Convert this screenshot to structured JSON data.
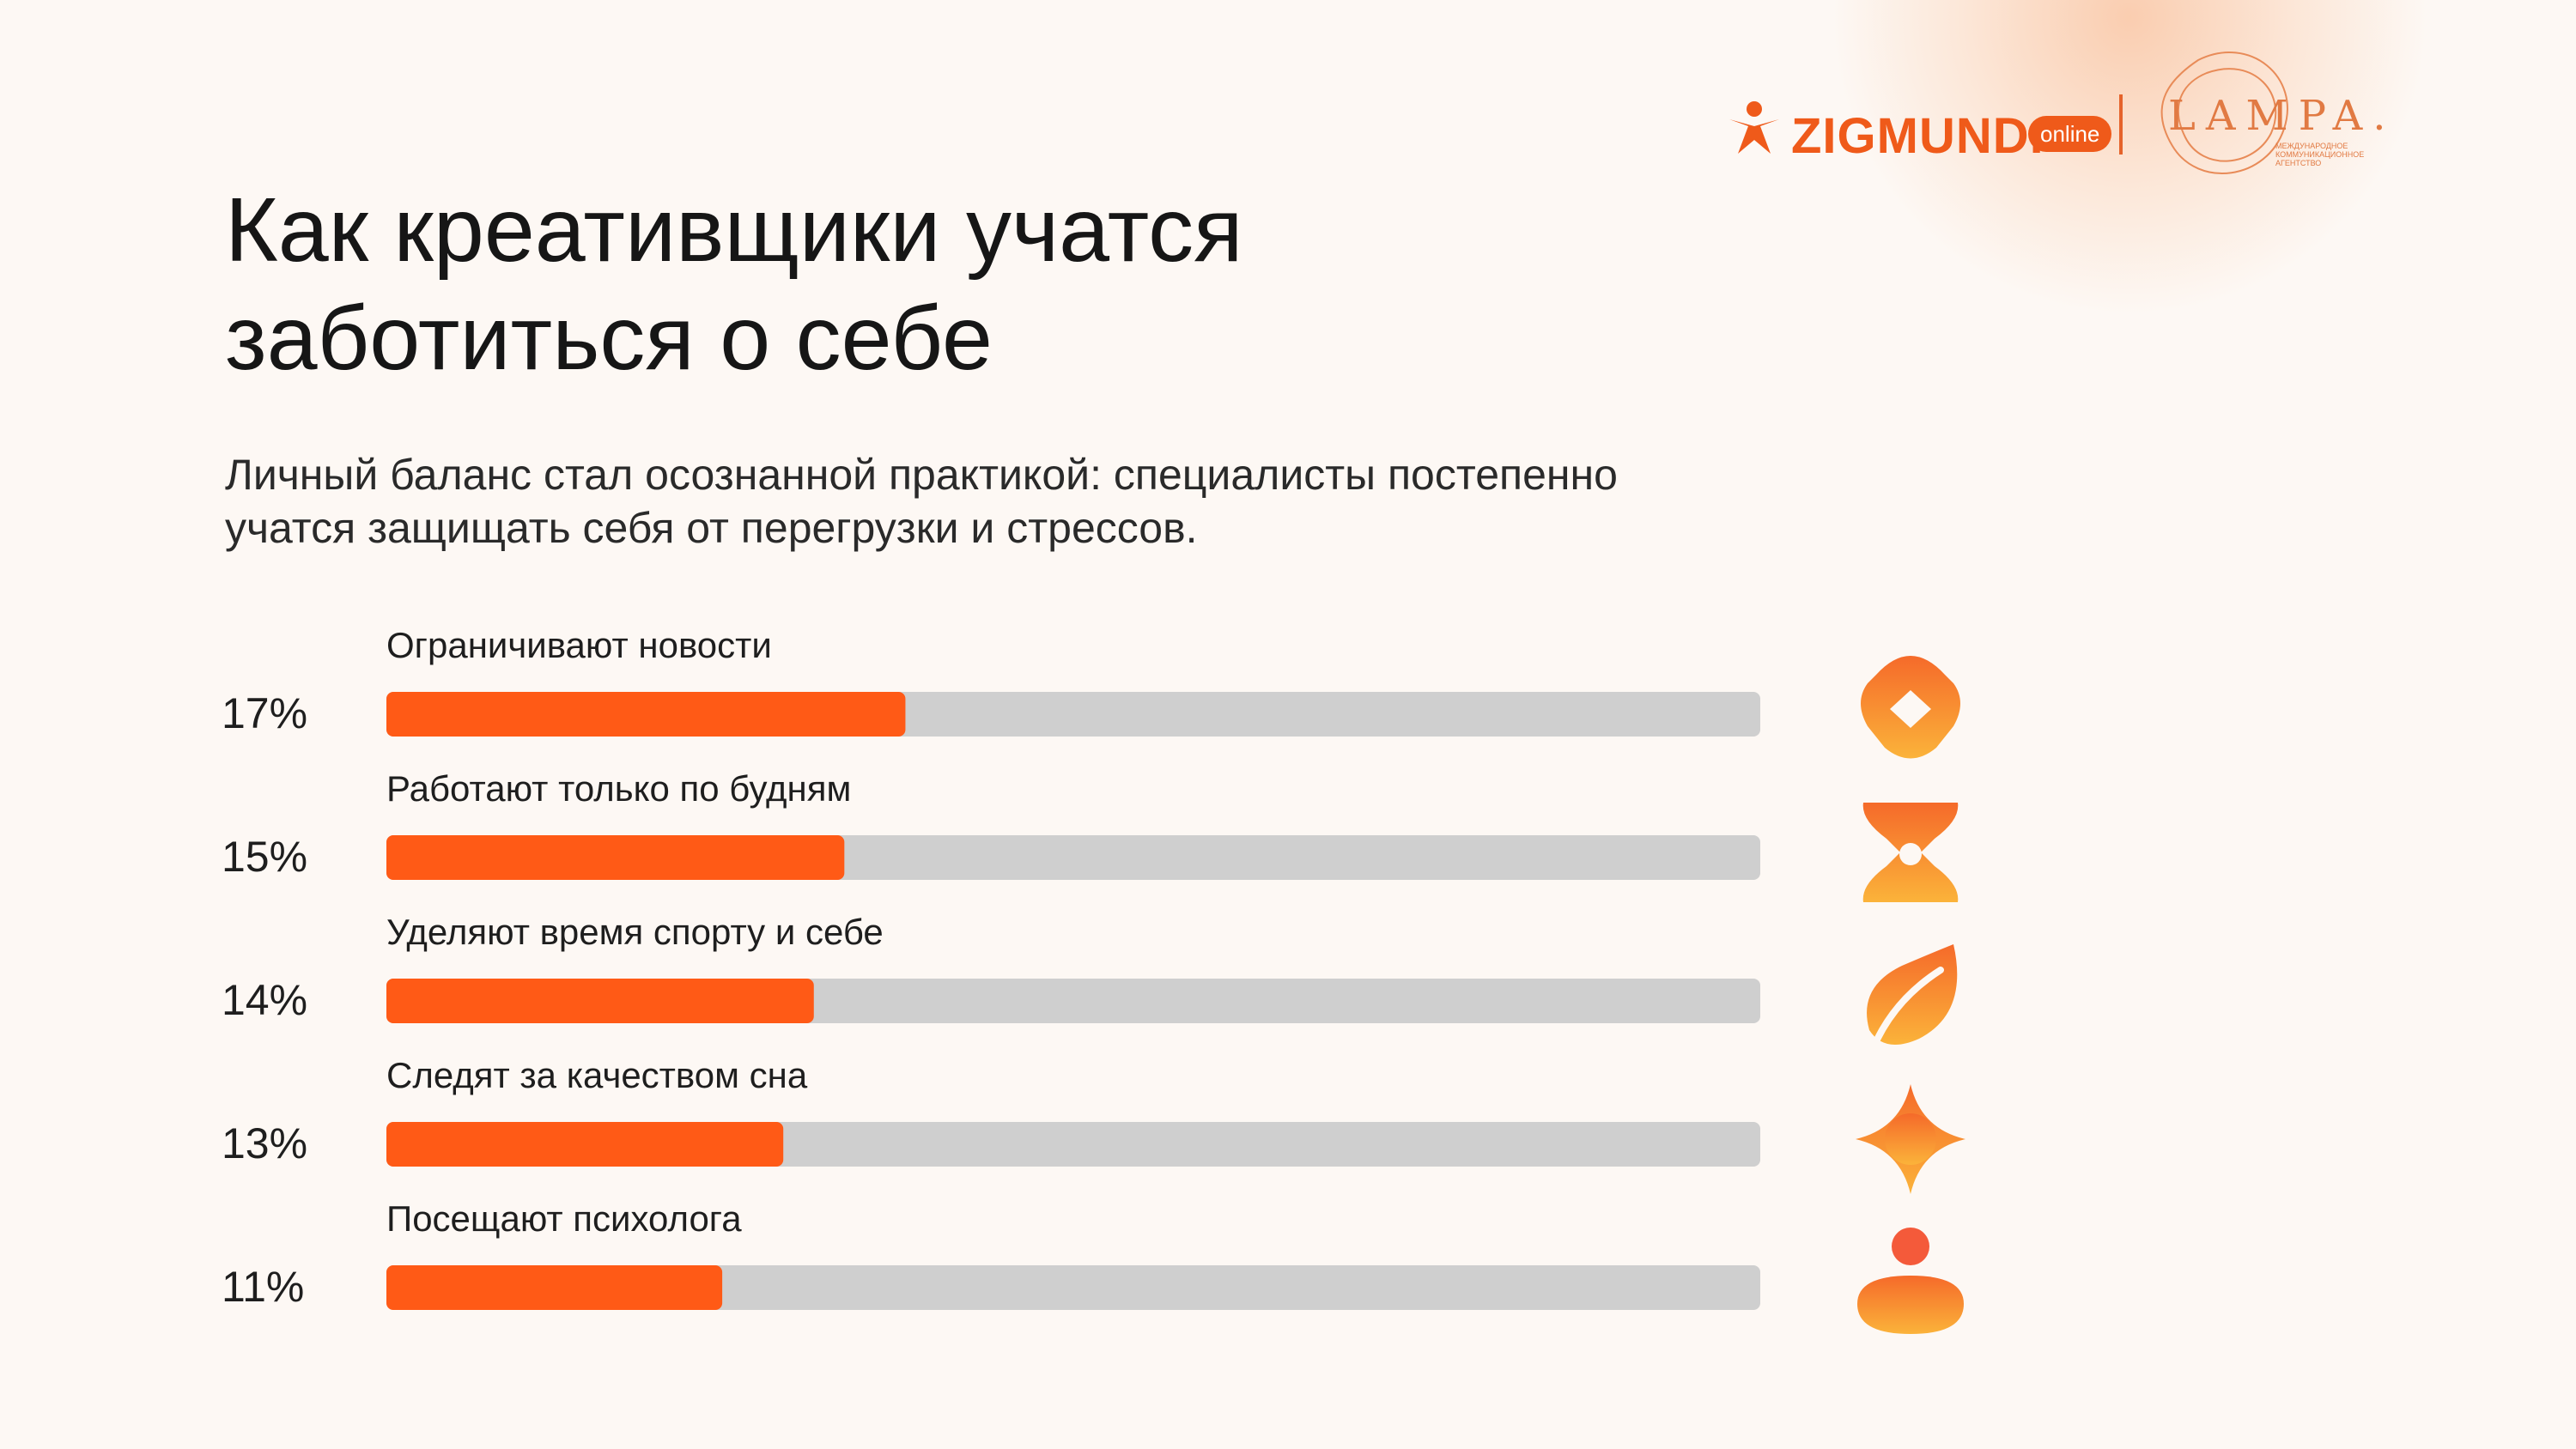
{
  "header": {
    "title_lines": [
      "Как креативщики учатся",
      "заботиться о себе"
    ],
    "subtitle_lines": [
      "Личный баланс стал осознанной практикой: специалисты постепенно",
      "учатся защищать себя от перегрузки и стрессов."
    ]
  },
  "logos": {
    "zigmund_word": "ZIGMUND.",
    "zigmund_badge": "online",
    "lampa_word": "LAMPA.",
    "lampa_sub": [
      "МЕЖДУНАРОДНОЕ",
      "КОММУНИКАЦИОННОЕ",
      "АГЕНТСТВО"
    ]
  },
  "colors": {
    "accent": "#ff5a16",
    "track": "#cfcfcf",
    "brand": "#ef5a1a",
    "icon_orange": "#f56a2a",
    "icon_yellow": "#fbb33a"
  },
  "chart_data": {
    "type": "bar",
    "orientation": "horizontal",
    "categories": [
      "Ограничивают новости",
      "Работают только по будням",
      "Уделяют время спорту и себе",
      "Следят за качеством сна",
      "Посещают психолога"
    ],
    "values": [
      17,
      15,
      14,
      13,
      11
    ],
    "value_labels": [
      "17%",
      "15%",
      "14%",
      "13%",
      "11%"
    ],
    "icons": [
      "diamond-icon",
      "hourglass-icon",
      "leaf-icon",
      "sparkle-icon",
      "person-icon"
    ],
    "unit": "%",
    "xlim": [
      0,
      45
    ],
    "grid": false,
    "legend": "none"
  }
}
